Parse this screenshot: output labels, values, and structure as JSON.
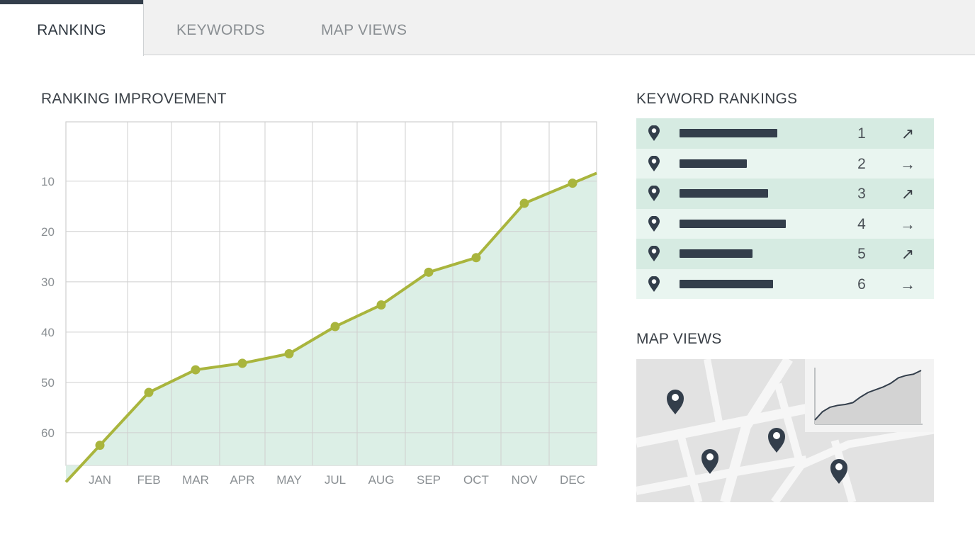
{
  "tabs": [
    {
      "label": "RANKING",
      "active": true
    },
    {
      "label": "KEYWORDS",
      "active": false
    },
    {
      "label": "MAP VIEWS",
      "active": false
    }
  ],
  "ranking_section": {
    "title": "RANKING IMPROVEMENT"
  },
  "keywords_section": {
    "title": "KEYWORD RANKINGS",
    "rows": [
      {
        "rank": "1",
        "trend": "↗",
        "trend_icon": "arrow-up-right-icon",
        "bar_fraction": 0.92
      },
      {
        "rank": "2",
        "trend": "→",
        "trend_icon": "arrow-right-icon",
        "bar_fraction": 0.63
      },
      {
        "rank": "3",
        "trend": "↗",
        "trend_icon": "arrow-up-right-icon",
        "bar_fraction": 0.83
      },
      {
        "rank": "4",
        "trend": "→",
        "trend_icon": "arrow-right-icon",
        "bar_fraction": 1.0
      },
      {
        "rank": "5",
        "trend": "↗",
        "trend_icon": "arrow-up-right-icon",
        "bar_fraction": 0.69
      },
      {
        "rank": "6",
        "trend": "→",
        "trend_icon": "arrow-right-icon",
        "bar_fraction": 0.88
      }
    ]
  },
  "map_section": {
    "title": "MAP VIEWS",
    "pins": 4,
    "sparkline_trend": [
      0,
      0.18,
      0.28,
      0.32,
      0.34,
      0.38,
      0.5,
      0.6,
      0.66,
      0.72,
      0.8,
      0.92,
      0.97,
      1.0,
      1.08
    ]
  },
  "colors": {
    "accent": "#a9b53d",
    "area_fill": "#dcefe6",
    "dark": "#333e4b",
    "grid": "#cfcfcf",
    "row_odd": "#d6ebe2",
    "row_even": "#e9f5f0"
  },
  "chart_data": {
    "type": "area",
    "title": "RANKING IMPROVEMENT",
    "categories": [
      "JAN",
      "FEB",
      "MAR",
      "APR",
      "MAY",
      "JUL",
      "AUG",
      "SEP",
      "OCT",
      "NOV",
      "DEC"
    ],
    "series": [
      {
        "values": [
          62.5,
          52,
          47.5,
          46.2,
          44.3,
          38.9,
          34.6,
          28.1,
          25.2,
          14.4,
          10.4
        ]
      }
    ],
    "y_ticks": [
      "10",
      "20",
      "30",
      "40",
      "50",
      "60"
    ],
    "y_tick_values": [
      10,
      20,
      30,
      40,
      50,
      60
    ],
    "y_inverted": true,
    "ylim": [
      -1.8,
      66.5
    ],
    "grid": true,
    "markers": true
  }
}
